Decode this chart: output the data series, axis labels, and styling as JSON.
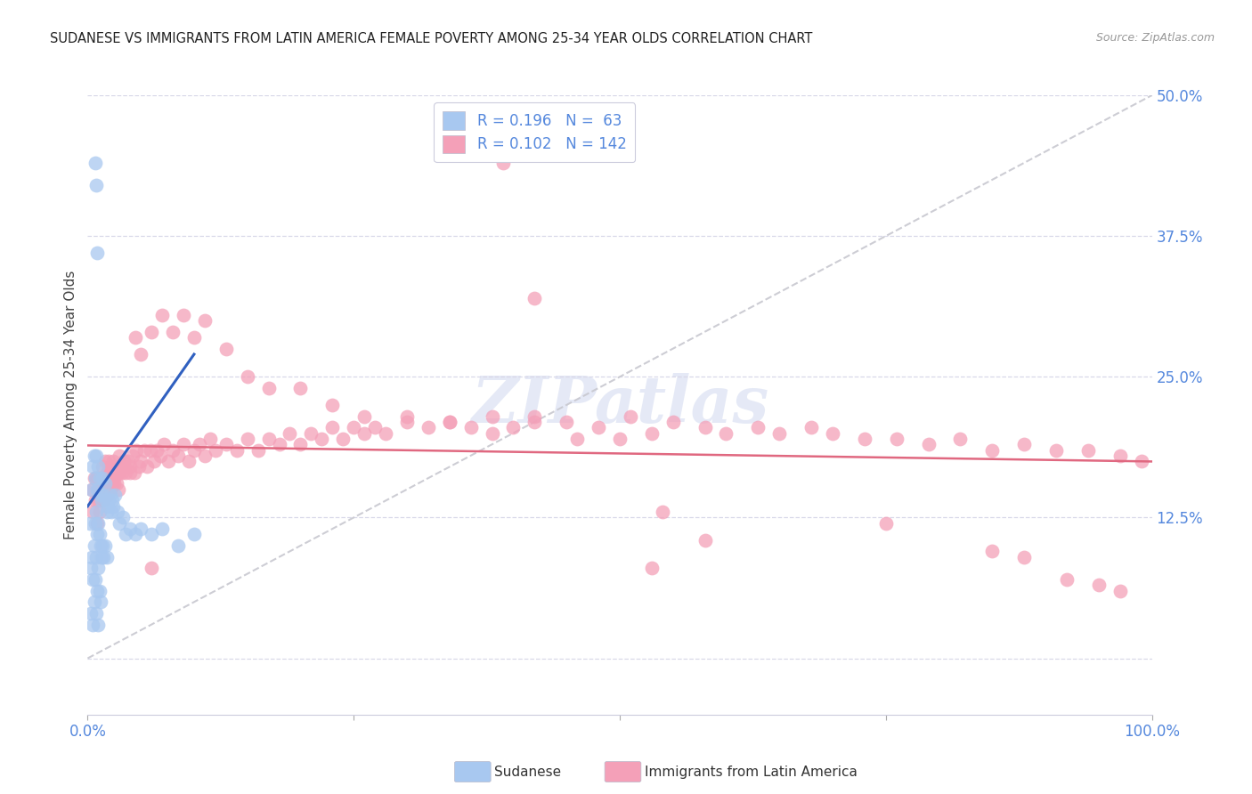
{
  "title": "SUDANESE VS IMMIGRANTS FROM LATIN AMERICA FEMALE POVERTY AMONG 25-34 YEAR OLDS CORRELATION CHART",
  "source": "Source: ZipAtlas.com",
  "ylabel": "Female Poverty Among 25-34 Year Olds",
  "xlim": [
    0,
    1.0
  ],
  "ylim": [
    -0.05,
    0.5
  ],
  "ytick_vals": [
    0.0,
    0.125,
    0.25,
    0.375,
    0.5
  ],
  "ytick_labels": [
    "",
    "12.5%",
    "25.0%",
    "37.5%",
    "50.0%"
  ],
  "xtick_vals": [
    0.0,
    0.25,
    0.5,
    0.75,
    1.0
  ],
  "xtick_labels": [
    "0.0%",
    "",
    "",
    "",
    "100.0%"
  ],
  "legend_line1": "R = 0.196   N =  63",
  "legend_line2": "R = 0.102   N = 142",
  "color_sudanese": "#a8c8f0",
  "color_latin": "#f4a0b8",
  "color_trend_sud": "#3060c0",
  "color_trend_lat": "#e06880",
  "color_diagonal": "#c8c8d0",
  "color_label": "#5588dd",
  "color_grid": "#d8d8e8",
  "watermark": "ZIPatlas",
  "background": "#ffffff",
  "sudanese_x": [
    0.002,
    0.003,
    0.003,
    0.004,
    0.004,
    0.005,
    0.005,
    0.005,
    0.006,
    0.006,
    0.006,
    0.007,
    0.007,
    0.007,
    0.008,
    0.008,
    0.008,
    0.008,
    0.009,
    0.009,
    0.009,
    0.01,
    0.01,
    0.01,
    0.01,
    0.011,
    0.011,
    0.011,
    0.012,
    0.012,
    0.012,
    0.013,
    0.013,
    0.014,
    0.014,
    0.015,
    0.015,
    0.016,
    0.016,
    0.017,
    0.018,
    0.018,
    0.019,
    0.02,
    0.021,
    0.022,
    0.023,
    0.024,
    0.026,
    0.028,
    0.03,
    0.033,
    0.036,
    0.04,
    0.045,
    0.05,
    0.06,
    0.07,
    0.085,
    0.1,
    0.007,
    0.008,
    0.009
  ],
  "sudanese_y": [
    0.12,
    0.08,
    0.04,
    0.15,
    0.09,
    0.17,
    0.07,
    0.03,
    0.18,
    0.1,
    0.05,
    0.16,
    0.12,
    0.07,
    0.18,
    0.13,
    0.09,
    0.04,
    0.15,
    0.11,
    0.06,
    0.17,
    0.12,
    0.08,
    0.03,
    0.16,
    0.11,
    0.06,
    0.145,
    0.1,
    0.05,
    0.14,
    0.09,
    0.16,
    0.1,
    0.145,
    0.09,
    0.155,
    0.1,
    0.14,
    0.13,
    0.09,
    0.135,
    0.14,
    0.145,
    0.13,
    0.14,
    0.135,
    0.145,
    0.13,
    0.12,
    0.125,
    0.11,
    0.115,
    0.11,
    0.115,
    0.11,
    0.115,
    0.1,
    0.11,
    0.44,
    0.42,
    0.36
  ],
  "latin_x": [
    0.004,
    0.005,
    0.006,
    0.007,
    0.008,
    0.009,
    0.01,
    0.011,
    0.012,
    0.013,
    0.014,
    0.015,
    0.016,
    0.017,
    0.018,
    0.019,
    0.02,
    0.021,
    0.022,
    0.023,
    0.024,
    0.025,
    0.026,
    0.027,
    0.028,
    0.029,
    0.03,
    0.032,
    0.034,
    0.036,
    0.038,
    0.04,
    0.042,
    0.044,
    0.046,
    0.048,
    0.05,
    0.053,
    0.056,
    0.059,
    0.062,
    0.065,
    0.068,
    0.072,
    0.076,
    0.08,
    0.085,
    0.09,
    0.095,
    0.1,
    0.105,
    0.11,
    0.115,
    0.12,
    0.13,
    0.14,
    0.15,
    0.16,
    0.17,
    0.18,
    0.19,
    0.2,
    0.21,
    0.22,
    0.23,
    0.24,
    0.25,
    0.26,
    0.27,
    0.28,
    0.3,
    0.32,
    0.34,
    0.36,
    0.38,
    0.4,
    0.42,
    0.45,
    0.48,
    0.51,
    0.53,
    0.55,
    0.58,
    0.6,
    0.63,
    0.65,
    0.68,
    0.7,
    0.73,
    0.76,
    0.79,
    0.82,
    0.85,
    0.88,
    0.91,
    0.94,
    0.97,
    0.99,
    0.01,
    0.01,
    0.015,
    0.015,
    0.02,
    0.02,
    0.025,
    0.025,
    0.03,
    0.03,
    0.035,
    0.04,
    0.045,
    0.05,
    0.06,
    0.07,
    0.08,
    0.09,
    0.1,
    0.11,
    0.13,
    0.15,
    0.17,
    0.2,
    0.23,
    0.26,
    0.3,
    0.34,
    0.38,
    0.42,
    0.46,
    0.5,
    0.54,
    0.58,
    0.53,
    0.75,
    0.85,
    0.88,
    0.92,
    0.95,
    0.97,
    0.06,
    0.39,
    0.42
  ],
  "latin_y": [
    0.15,
    0.13,
    0.16,
    0.14,
    0.16,
    0.12,
    0.15,
    0.13,
    0.16,
    0.14,
    0.17,
    0.155,
    0.175,
    0.155,
    0.165,
    0.145,
    0.165,
    0.15,
    0.17,
    0.155,
    0.175,
    0.16,
    0.17,
    0.155,
    0.165,
    0.15,
    0.17,
    0.165,
    0.175,
    0.165,
    0.175,
    0.17,
    0.18,
    0.165,
    0.185,
    0.17,
    0.175,
    0.185,
    0.17,
    0.185,
    0.175,
    0.185,
    0.18,
    0.19,
    0.175,
    0.185,
    0.18,
    0.19,
    0.175,
    0.185,
    0.19,
    0.18,
    0.195,
    0.185,
    0.19,
    0.185,
    0.195,
    0.185,
    0.195,
    0.19,
    0.2,
    0.19,
    0.2,
    0.195,
    0.205,
    0.195,
    0.205,
    0.2,
    0.205,
    0.2,
    0.21,
    0.205,
    0.21,
    0.205,
    0.215,
    0.205,
    0.215,
    0.21,
    0.205,
    0.215,
    0.2,
    0.21,
    0.205,
    0.2,
    0.205,
    0.2,
    0.205,
    0.2,
    0.195,
    0.195,
    0.19,
    0.195,
    0.185,
    0.19,
    0.185,
    0.185,
    0.18,
    0.175,
    0.14,
    0.16,
    0.16,
    0.14,
    0.175,
    0.155,
    0.165,
    0.155,
    0.18,
    0.165,
    0.17,
    0.165,
    0.285,
    0.27,
    0.29,
    0.305,
    0.29,
    0.305,
    0.285,
    0.3,
    0.275,
    0.25,
    0.24,
    0.24,
    0.225,
    0.215,
    0.215,
    0.21,
    0.2,
    0.21,
    0.195,
    0.195,
    0.13,
    0.105,
    0.08,
    0.12,
    0.095,
    0.09,
    0.07,
    0.065,
    0.06,
    0.08,
    0.44,
    0.32
  ]
}
